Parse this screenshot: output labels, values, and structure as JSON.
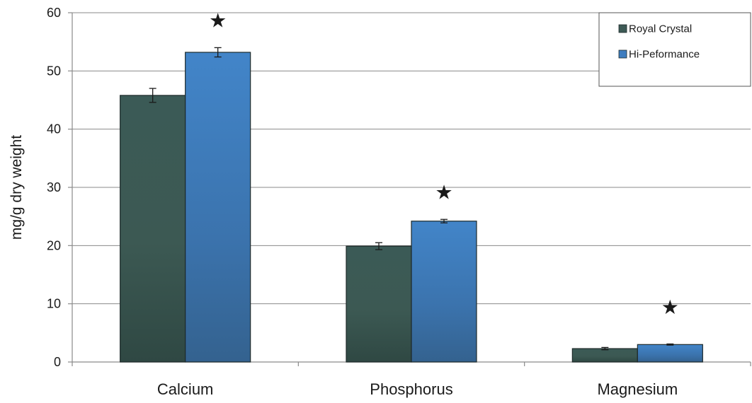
{
  "chart_data": {
    "type": "bar",
    "title": "",
    "xlabel": "",
    "ylabel": "mg/g dry weight",
    "ylim": [
      0,
      60
    ],
    "yticks": [
      0,
      10,
      20,
      30,
      40,
      50,
      60
    ],
    "grid": "horizontal",
    "legend_position": "top-right",
    "categories": [
      "Calcium",
      "Phosphorus",
      "Magnesium"
    ],
    "series": [
      {
        "name": "Royal Crystal",
        "color": "#3d5a55",
        "values": [
          45.8,
          19.9,
          2.3
        ],
        "errors": [
          1.2,
          0.6,
          0.2
        ]
      },
      {
        "name": "Hi-Peformance",
        "color": "#3e7dbf",
        "values": [
          53.2,
          24.2,
          3.0
        ],
        "errors": [
          0.8,
          0.3,
          0.1
        ]
      }
    ],
    "annotations": [
      {
        "text": "★",
        "category": "Calcium",
        "series": "Hi-Peformance",
        "y": 58.7
      },
      {
        "text": "★",
        "category": "Phosphorus",
        "series": "Hi-Peformance",
        "y": 29.2
      },
      {
        "text": "★",
        "category": "Magnesium",
        "series": "Hi-Peformance",
        "y": 9.5
      }
    ]
  }
}
